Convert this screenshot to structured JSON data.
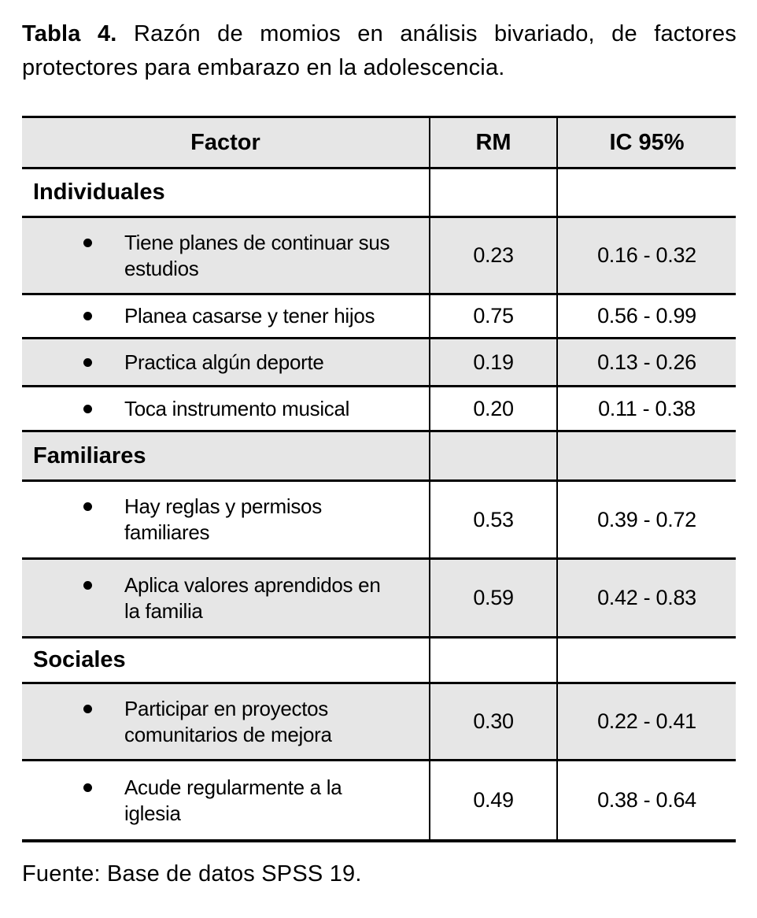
{
  "title": {
    "label": "Tabla 4.",
    "text": "Razón de momios en análisis bivariado, de factores protectores para embarazo en la adolescencia."
  },
  "table": {
    "headers": [
      "Factor",
      "RM",
      "IC 95%"
    ],
    "rows": [
      {
        "type": "category",
        "factor": "Individuales",
        "rm": "",
        "ic": ""
      },
      {
        "type": "item",
        "factor": "Tiene planes de continuar sus estudios",
        "factor_lines": [
          "Tiene planes de continuar sus",
          "estudios"
        ],
        "rm": "0.23",
        "ic": "0.16 - 0.32"
      },
      {
        "type": "item",
        "factor": "Planea casarse y tener hijos",
        "factor_lines": [
          "Planea casarse y tener hijos"
        ],
        "rm": "0.75",
        "ic": "0.56 - 0.99"
      },
      {
        "type": "item",
        "factor": "Practica algún deporte",
        "factor_lines": [
          "Practica algún deporte"
        ],
        "rm": "0.19",
        "ic": "0.13 - 0.26"
      },
      {
        "type": "item",
        "factor": "Toca instrumento musical",
        "factor_lines": [
          "Toca instrumento musical"
        ],
        "rm": "0.20",
        "ic": "0.11 - 0.38"
      },
      {
        "type": "category",
        "factor": "Familiares",
        "rm": "",
        "ic": ""
      },
      {
        "type": "item",
        "factor": "Hay reglas y permisos familiares",
        "factor_lines": [
          "Hay reglas y permisos",
          "familiares"
        ],
        "rm": "0.53",
        "ic": "0.39 - 0.72"
      },
      {
        "type": "item",
        "factor": "Aplica valores aprendidos en la familia",
        "factor_lines": [
          "Aplica valores aprendidos en",
          "la familia"
        ],
        "rm": "0.59",
        "ic": "0.42 - 0.83"
      },
      {
        "type": "category",
        "factor": "Sociales",
        "rm": "",
        "ic": ""
      },
      {
        "type": "item",
        "factor": "Participar en proyectos comunitarios de mejora",
        "factor_lines": [
          "Participar en proyectos",
          "comunitarios de mejora"
        ],
        "rm": "0.30",
        "ic": "0.22 - 0.41"
      },
      {
        "type": "item",
        "factor": "Acude regularmente a la iglesia",
        "factor_lines": [
          "Acude regularmente a la",
          "iglesia"
        ],
        "rm": "0.49",
        "ic": "0.38 - 0.64"
      }
    ]
  },
  "footer": {
    "text": "Fuente: Base de datos SPSS 19."
  },
  "icons": {
    "bullet": "•"
  },
  "colors": {
    "page_background": "#ffffff",
    "row_shade": "#e6e6e6",
    "border": "#000000",
    "text": "#000000"
  }
}
